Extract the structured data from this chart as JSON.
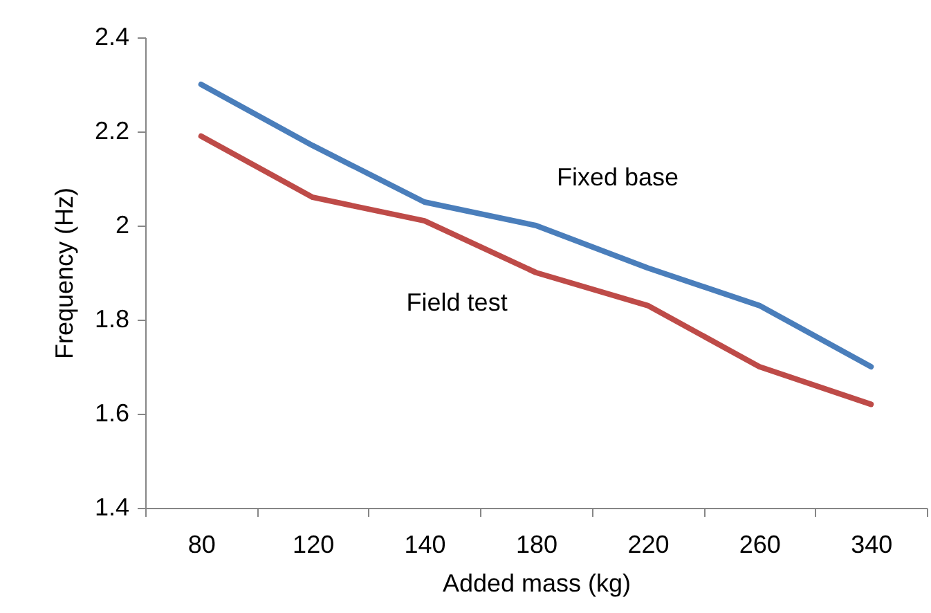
{
  "chart_data": {
    "type": "line",
    "xlabel": "Added mass (kg)",
    "ylabel": "Frequency (Hz)",
    "categories": [
      "80",
      "120",
      "140",
      "180",
      "220",
      "260",
      "340"
    ],
    "series": [
      {
        "name": "Fixed base",
        "color": "#4a7ebb",
        "values": [
          2.3,
          2.17,
          2.05,
          2.0,
          1.91,
          1.83,
          1.7
        ]
      },
      {
        "name": "Field test",
        "color": "#be4b48",
        "values": [
          2.19,
          2.06,
          2.01,
          1.9,
          1.83,
          1.7,
          1.62
        ]
      }
    ],
    "ylim": [
      1.4,
      2.4
    ],
    "yticks": [
      1.4,
      1.6,
      1.8,
      2,
      2.2,
      2.4
    ],
    "grid": false,
    "legend": false,
    "marker": "none",
    "line_style": "solid"
  }
}
